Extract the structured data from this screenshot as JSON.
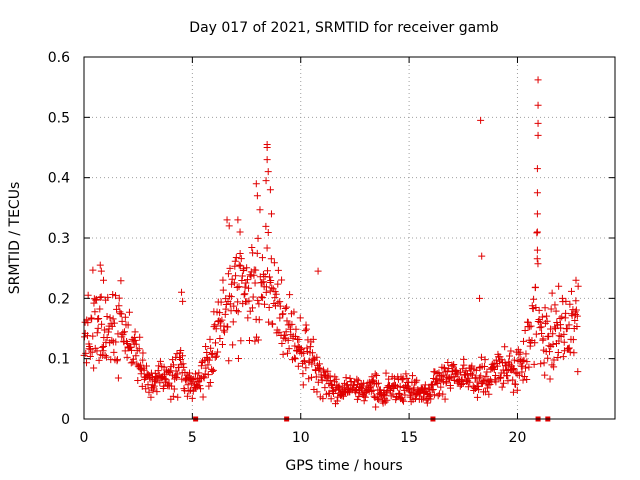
{
  "chart_data": {
    "type": "scatter",
    "title": "Day 017 of 2021, SRMTID for receiver gamb",
    "xlabel": "GPS time / hours",
    "ylabel": "SRMTID / TECUs",
    "xlim": [
      0,
      24.5
    ],
    "ylim": [
      0,
      0.6
    ],
    "grid": true,
    "marker": "+",
    "color": "#e00000",
    "xticks": [
      0,
      5,
      10,
      15,
      20
    ],
    "xtick_labels": [
      "0",
      "5",
      "10",
      "15",
      "20"
    ],
    "yticks": [
      0,
      0.1,
      0.2,
      0.3,
      0.4,
      0.5,
      0.6
    ],
    "ytick_labels": [
      "0",
      "0.1",
      "0.2",
      "0.3",
      "0.4",
      "0.5",
      "0.6"
    ],
    "baseline_markers_x": [
      5.15,
      9.35,
      16.1,
      20.95,
      21.4
    ],
    "trend": [
      [
        0.0,
        0.13
      ],
      [
        0.3,
        0.15
      ],
      [
        0.7,
        0.17
      ],
      [
        1.0,
        0.14
      ],
      [
        1.5,
        0.15
      ],
      [
        2.0,
        0.13
      ],
      [
        2.5,
        0.1
      ],
      [
        3.0,
        0.06
      ],
      [
        3.5,
        0.06
      ],
      [
        4.0,
        0.07
      ],
      [
        4.5,
        0.08
      ],
      [
        5.0,
        0.05
      ],
      [
        5.5,
        0.08
      ],
      [
        6.0,
        0.12
      ],
      [
        6.5,
        0.18
      ],
      [
        7.0,
        0.2
      ],
      [
        7.5,
        0.2
      ],
      [
        8.0,
        0.22
      ],
      [
        8.5,
        0.22
      ],
      [
        9.0,
        0.17
      ],
      [
        9.5,
        0.13
      ],
      [
        10.0,
        0.12
      ],
      [
        10.5,
        0.1
      ],
      [
        11.0,
        0.06
      ],
      [
        11.5,
        0.05
      ],
      [
        12.0,
        0.05
      ],
      [
        13.0,
        0.05
      ],
      [
        14.0,
        0.05
      ],
      [
        15.0,
        0.05
      ],
      [
        15.9,
        0.04
      ],
      [
        16.2,
        0.07
      ],
      [
        17.0,
        0.07
      ],
      [
        18.0,
        0.07
      ],
      [
        19.0,
        0.08
      ],
      [
        20.0,
        0.08
      ],
      [
        20.5,
        0.12
      ],
      [
        20.9,
        0.2
      ],
      [
        21.2,
        0.12
      ],
      [
        22.0,
        0.15
      ],
      [
        22.8,
        0.16
      ]
    ],
    "outliers": [
      [
        18.3,
        0.495
      ],
      [
        18.35,
        0.27
      ],
      [
        18.25,
        0.2
      ],
      [
        20.95,
        0.562
      ],
      [
        20.95,
        0.52
      ],
      [
        20.95,
        0.49
      ],
      [
        20.95,
        0.47
      ],
      [
        20.92,
        0.415
      ],
      [
        20.92,
        0.375
      ],
      [
        20.92,
        0.34
      ],
      [
        20.92,
        0.31
      ],
      [
        20.92,
        0.28
      ],
      [
        8.45,
        0.455
      ],
      [
        8.45,
        0.45
      ],
      [
        8.45,
        0.43
      ],
      [
        8.5,
        0.41
      ],
      [
        8.4,
        0.395
      ],
      [
        7.95,
        0.39
      ],
      [
        8.0,
        0.37
      ],
      [
        8.6,
        0.38
      ],
      [
        8.65,
        0.34
      ],
      [
        6.6,
        0.33
      ],
      [
        6.7,
        0.32
      ],
      [
        7.1,
        0.33
      ],
      [
        7.2,
        0.31
      ],
      [
        0.75,
        0.255
      ],
      [
        0.8,
        0.245
      ],
      [
        0.9,
        0.23
      ],
      [
        4.5,
        0.21
      ],
      [
        4.55,
        0.195
      ],
      [
        10.8,
        0.245
      ],
      [
        21.9,
        0.22
      ],
      [
        22.7,
        0.23
      ],
      [
        22.8,
        0.22
      ]
    ]
  }
}
